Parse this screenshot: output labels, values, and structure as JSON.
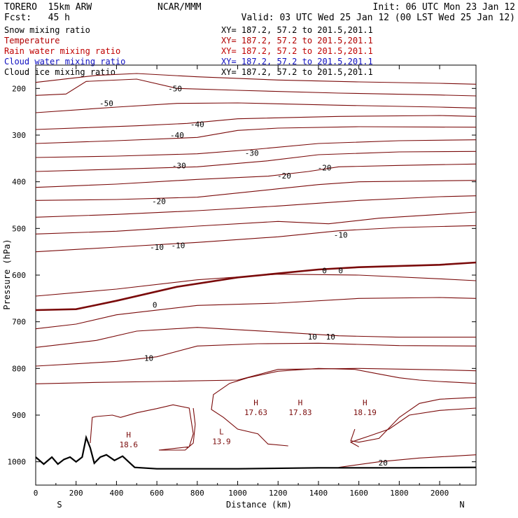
{
  "header": {
    "model": "TORERO  15km ARW",
    "center": "NCAR/MMM",
    "init": "Init: 06 UTC Mon 23 Jan 12",
    "fcst": "Fcst:   45 h",
    "valid": "Valid: 03 UTC Wed 25 Jan 12 (00 LST Wed 25 Jan 12)"
  },
  "legend": [
    {
      "label": "Snow mixing ratio",
      "xy": "XY= 187.2, 57.2 to 201.5,201.1",
      "color": "#000000"
    },
    {
      "label": "Temperature",
      "xy": "XY= 187.2, 57.2 to 201.5,201.1",
      "color": "#b00000"
    },
    {
      "label": "Rain water mixing ratio",
      "xy": "XY= 187.2, 57.2 to 201.5,201.1",
      "color": "#c00000"
    },
    {
      "label": "Cloud water mixing ratio",
      "xy": "XY= 187.2, 57.2 to 201.5,201.1",
      "color": "#1010c0"
    },
    {
      "label": "Cloud ice mixing ratio",
      "xy": "XY= 187.2, 57.2 to 201.5,201.1",
      "color": "#000000"
    }
  ],
  "chart_data": {
    "type": "line",
    "subtype": "vertical cross-section contour",
    "xlabel": "Distance (km)",
    "ylabel": "Pressure (hPa)",
    "xlim": [
      0,
      2180
    ],
    "ylim": [
      150,
      1050
    ],
    "y_axis_inverted": true,
    "xticks": [
      0,
      200,
      400,
      600,
      800,
      1000,
      1200,
      1400,
      1600,
      1800,
      2000
    ],
    "yticks": [
      200,
      300,
      400,
      500,
      600,
      700,
      800,
      900,
      1000
    ],
    "x_end_labels": {
      "left": "S",
      "right": "N"
    },
    "contour_color": "#7a0a0a",
    "freezing_line_color": "#7a0a0a",
    "terrain_color": "#000000",
    "isotherm_labels": [
      {
        "text": "-50",
        "x": 690,
        "p": 200
      },
      {
        "text": "-50",
        "x": 350,
        "p": 232
      },
      {
        "text": "-40",
        "x": 800,
        "p": 277
      },
      {
        "text": "-40",
        "x": 700,
        "p": 300
      },
      {
        "text": "-30",
        "x": 1070,
        "p": 338
      },
      {
        "text": "-30",
        "x": 710,
        "p": 365
      },
      {
        "text": "-20",
        "x": 1430,
        "p": 370
      },
      {
        "text": "-20",
        "x": 1230,
        "p": 387
      },
      {
        "text": "-20",
        "x": 610,
        "p": 442
      },
      {
        "text": "-10",
        "x": 1510,
        "p": 514
      },
      {
        "text": "-10",
        "x": 705,
        "p": 536
      },
      {
        "text": "-10",
        "x": 600,
        "p": 540
      },
      {
        "text": "0",
        "x": 1430,
        "p": 590
      },
      {
        "text": "0",
        "x": 1510,
        "p": 590
      },
      {
        "text": "0",
        "x": 590,
        "p": 664
      },
      {
        "text": "10",
        "x": 1370,
        "p": 732
      },
      {
        "text": "10",
        "x": 1460,
        "p": 732
      },
      {
        "text": "10",
        "x": 560,
        "p": 778
      },
      {
        "text": "20",
        "x": 1720,
        "p": 1002
      }
    ],
    "extrema": [
      {
        "type": "H",
        "value": "18.6",
        "x": 460,
        "p": 957
      },
      {
        "type": "L",
        "value": "13.9",
        "x": 920,
        "p": 950
      },
      {
        "type": "H",
        "value": "17.63",
        "x": 1090,
        "p": 888
      },
      {
        "type": "H",
        "value": "17.83",
        "x": 1310,
        "p": 888
      },
      {
        "type": "H",
        "value": "18.19",
        "x": 1630,
        "p": 888
      }
    ],
    "isotherms": [
      {
        "level": "-60",
        "points": [
          [
            0,
            187
          ],
          [
            300,
            172
          ],
          [
            500,
            168
          ],
          [
            800,
            175
          ],
          [
            1200,
            182
          ],
          [
            1600,
            186
          ],
          [
            2000,
            189
          ],
          [
            2180,
            191
          ]
        ]
      },
      {
        "level": "-50",
        "points": [
          [
            0,
            215
          ],
          [
            150,
            212
          ],
          [
            250,
            185
          ],
          [
            500,
            180
          ],
          [
            700,
            200
          ],
          [
            1000,
            204
          ],
          [
            1500,
            210
          ],
          [
            2000,
            214
          ],
          [
            2180,
            216
          ]
        ]
      },
      {
        "level": "-50b",
        "points": [
          [
            0,
            252
          ],
          [
            400,
            240
          ],
          [
            700,
            232
          ],
          [
            1000,
            231
          ],
          [
            1500,
            236
          ],
          [
            2000,
            240
          ],
          [
            2180,
            242
          ]
        ]
      },
      {
        "level": "-40",
        "points": [
          [
            0,
            288
          ],
          [
            500,
            280
          ],
          [
            750,
            275
          ],
          [
            1000,
            265
          ],
          [
            1500,
            260
          ],
          [
            2000,
            258
          ],
          [
            2180,
            260
          ]
        ]
      },
      {
        "level": "-40b",
        "points": [
          [
            0,
            318
          ],
          [
            400,
            312
          ],
          [
            800,
            305
          ],
          [
            1000,
            290
          ],
          [
            1200,
            285
          ],
          [
            1600,
            282
          ],
          [
            2180,
            283
          ]
        ]
      },
      {
        "level": "-30",
        "points": [
          [
            0,
            348
          ],
          [
            400,
            345
          ],
          [
            800,
            340
          ],
          [
            1100,
            330
          ],
          [
            1400,
            318
          ],
          [
            1800,
            312
          ],
          [
            2180,
            310
          ]
        ]
      },
      {
        "level": "-30b",
        "points": [
          [
            0,
            378
          ],
          [
            400,
            373
          ],
          [
            800,
            368
          ],
          [
            1150,
            355
          ],
          [
            1400,
            342
          ],
          [
            1800,
            336
          ],
          [
            2180,
            335
          ]
        ]
      },
      {
        "level": "-20",
        "points": [
          [
            0,
            412
          ],
          [
            400,
            405
          ],
          [
            800,
            395
          ],
          [
            1150,
            388
          ],
          [
            1350,
            378
          ],
          [
            1500,
            368
          ],
          [
            1800,
            365
          ],
          [
            2180,
            362
          ]
        ]
      },
      {
        "level": "-20b",
        "points": [
          [
            0,
            440
          ],
          [
            400,
            438
          ],
          [
            800,
            433
          ],
          [
            1200,
            415
          ],
          [
            1400,
            406
          ],
          [
            1600,
            400
          ],
          [
            2000,
            398
          ],
          [
            2180,
            397
          ]
        ]
      },
      {
        "level": "-20c",
        "points": [
          [
            0,
            476
          ],
          [
            400,
            470
          ],
          [
            800,
            462
          ],
          [
            1200,
            452
          ],
          [
            1600,
            440
          ],
          [
            2000,
            432
          ],
          [
            2180,
            430
          ]
        ]
      },
      {
        "level": "-10",
        "points": [
          [
            0,
            512
          ],
          [
            400,
            506
          ],
          [
            800,
            495
          ],
          [
            1200,
            485
          ],
          [
            1450,
            490
          ],
          [
            1700,
            478
          ],
          [
            2000,
            470
          ],
          [
            2180,
            465
          ]
        ]
      },
      {
        "level": "-10b",
        "points": [
          [
            0,
            550
          ],
          [
            400,
            540
          ],
          [
            800,
            530
          ],
          [
            1200,
            518
          ],
          [
            1500,
            505
          ],
          [
            1800,
            498
          ],
          [
            2180,
            494
          ]
        ]
      },
      {
        "level": "0",
        "points": [
          [
            0,
            675
          ],
          [
            200,
            673
          ],
          [
            400,
            655
          ],
          [
            700,
            625
          ],
          [
            1000,
            605
          ],
          [
            1400,
            588
          ],
          [
            1600,
            583
          ],
          [
            2000,
            578
          ],
          [
            2180,
            573
          ]
        ],
        "bold": true
      },
      {
        "level": "5",
        "points": [
          [
            0,
            645
          ],
          [
            400,
            630
          ],
          [
            800,
            610
          ],
          [
            1200,
            598
          ],
          [
            1600,
            600
          ],
          [
            2000,
            608
          ],
          [
            2180,
            612
          ]
        ]
      },
      {
        "level": "10",
        "points": [
          [
            0,
            715
          ],
          [
            200,
            705
          ],
          [
            400,
            685
          ],
          [
            800,
            665
          ],
          [
            1200,
            660
          ],
          [
            1600,
            650
          ],
          [
            2000,
            648
          ],
          [
            2180,
            650
          ]
        ]
      },
      {
        "level": "10b",
        "points": [
          [
            0,
            755
          ],
          [
            300,
            740
          ],
          [
            500,
            720
          ],
          [
            800,
            712
          ],
          [
            1200,
            722
          ],
          [
            1500,
            730
          ],
          [
            1800,
            733
          ],
          [
            2180,
            733
          ]
        ]
      },
      {
        "level": "10c",
        "points": [
          [
            0,
            795
          ],
          [
            400,
            785
          ],
          [
            600,
            775
          ],
          [
            800,
            752
          ],
          [
            1100,
            747
          ],
          [
            1400,
            746
          ],
          [
            1800,
            751
          ],
          [
            2180,
            752
          ]
        ]
      },
      {
        "level": "15",
        "points": [
          [
            0,
            833
          ],
          [
            300,
            830
          ],
          [
            600,
            828
          ],
          [
            1000,
            825
          ],
          [
            1200,
            802
          ],
          [
            1600,
            800
          ],
          [
            2000,
            803
          ],
          [
            2180,
            805
          ]
        ]
      }
    ],
    "rain_blobs": [
      {
        "points": [
          [
            270,
            960
          ],
          [
            280,
            905
          ],
          [
            300,
            903
          ],
          [
            380,
            900
          ],
          [
            420,
            905
          ],
          [
            500,
            895
          ],
          [
            600,
            886
          ],
          [
            680,
            878
          ],
          [
            760,
            885
          ],
          [
            780,
            940
          ],
          [
            760,
            968
          ],
          [
            610,
            975
          ],
          [
            740,
            975
          ],
          [
            780,
            960
          ],
          [
            790,
            920
          ],
          [
            780,
            885
          ]
        ]
      },
      {
        "points": [
          [
            1250,
            966
          ],
          [
            1150,
            962
          ],
          [
            1100,
            940
          ],
          [
            1000,
            930
          ],
          [
            930,
            905
          ],
          [
            870,
            888
          ],
          [
            880,
            856
          ],
          [
            960,
            832
          ],
          [
            1050,
            820
          ],
          [
            1200,
            806
          ],
          [
            1400,
            800
          ],
          [
            1580,
            802
          ],
          [
            1700,
            812
          ],
          [
            1800,
            820
          ],
          [
            1900,
            825
          ],
          [
            2000,
            828
          ],
          [
            2180,
            832
          ]
        ]
      },
      {
        "points": [
          [
            1580,
            930
          ],
          [
            1560,
            955
          ],
          [
            1600,
            958
          ],
          [
            1700,
            950
          ],
          [
            1800,
            905
          ],
          [
            1900,
            875
          ],
          [
            2000,
            866
          ],
          [
            2180,
            862
          ]
        ]
      },
      {
        "points": [
          [
            1600,
            968
          ],
          [
            1560,
            958
          ],
          [
            1650,
            945
          ],
          [
            1750,
            930
          ],
          [
            1850,
            900
          ],
          [
            2000,
            890
          ],
          [
            2180,
            885
          ]
        ]
      }
    ],
    "low_level_lines": [
      {
        "points": [
          [
            1500,
            1012
          ],
          [
            1700,
            1000
          ],
          [
            1900,
            992
          ],
          [
            2180,
            985
          ]
        ]
      }
    ],
    "terrain": [
      [
        0,
        990
      ],
      [
        40,
        1005
      ],
      [
        80,
        990
      ],
      [
        110,
        1005
      ],
      [
        140,
        995
      ],
      [
        170,
        990
      ],
      [
        200,
        1000
      ],
      [
        230,
        990
      ],
      [
        250,
        948
      ],
      [
        270,
        970
      ],
      [
        290,
        1003
      ],
      [
        320,
        990
      ],
      [
        350,
        985
      ],
      [
        390,
        997
      ],
      [
        430,
        988
      ],
      [
        460,
        1000
      ],
      [
        490,
        1012
      ],
      [
        600,
        1015
      ],
      [
        1000,
        1015
      ],
      [
        1400,
        1013
      ],
      [
        1800,
        1013
      ],
      [
        2180,
        1012
      ]
    ]
  }
}
